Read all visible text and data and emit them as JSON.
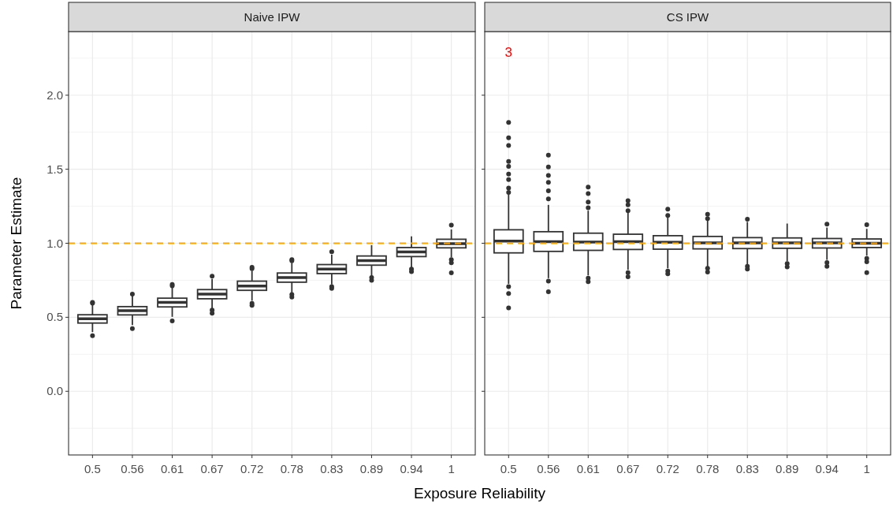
{
  "chart_data": [
    {
      "type": "box",
      "title": "Naive IPW",
      "xlabel": "Exposure Reliability",
      "ylabel": "Parameter Estimate",
      "categories": [
        "0.5",
        "0.56",
        "0.61",
        "0.67",
        "0.72",
        "0.78",
        "0.83",
        "0.89",
        "0.94",
        "1"
      ],
      "boxes": [
        {
          "low": 0.4,
          "q1": 0.461,
          "median": 0.49,
          "q3": 0.517,
          "high": 0.585,
          "outliers": [
            0.6,
            0.595,
            0.375
          ]
        },
        {
          "low": 0.448,
          "q1": 0.516,
          "median": 0.545,
          "q3": 0.572,
          "high": 0.649,
          "outliers": [
            0.656,
            0.424
          ]
        },
        {
          "low": 0.503,
          "q1": 0.57,
          "median": 0.6,
          "q3": 0.629,
          "high": 0.704,
          "outliers": [
            0.722,
            0.713,
            0.475
          ]
        },
        {
          "low": 0.558,
          "q1": 0.625,
          "median": 0.656,
          "q3": 0.687,
          "high": 0.759,
          "outliers": [
            0.777,
            0.548,
            0.527
          ]
        },
        {
          "low": 0.612,
          "q1": 0.682,
          "median": 0.711,
          "q3": 0.744,
          "high": 0.814,
          "outliers": [
            0.837,
            0.828,
            0.594,
            0.581
          ]
        },
        {
          "low": 0.667,
          "q1": 0.737,
          "median": 0.768,
          "q3": 0.799,
          "high": 0.868,
          "outliers": [
            0.89,
            0.881,
            0.654,
            0.636
          ]
        },
        {
          "low": 0.722,
          "q1": 0.795,
          "median": 0.826,
          "q3": 0.856,
          "high": 0.923,
          "outliers": [
            0.943,
            0.707,
            0.695
          ]
        },
        {
          "low": 0.777,
          "q1": 0.852,
          "median": 0.883,
          "q3": 0.914,
          "high": 0.987,
          "outliers": [
            0.768,
            0.75
          ]
        },
        {
          "low": 0.837,
          "q1": 0.91,
          "median": 0.942,
          "q3": 0.971,
          "high": 1.046,
          "outliers": [
            0.826,
            0.808
          ]
        },
        {
          "low": 0.905,
          "q1": 0.969,
          "median": 0.998,
          "q3": 1.027,
          "high": 1.093,
          "outliers": [
            1.122,
            0.89,
            0.868,
            0.8
          ]
        }
      ],
      "ylim": [
        -0.43,
        2.43
      ],
      "yticks": [
        {
          "value": 0,
          "label": "0.0"
        },
        {
          "value": 0.5,
          "label": "0.5"
        },
        {
          "value": 1,
          "label": "1.0"
        },
        {
          "value": 1.5,
          "label": "1.5"
        },
        {
          "value": 2,
          "label": "2.0"
        }
      ],
      "grid": true,
      "ref_lines": [
        {
          "axis": "y",
          "value": 1,
          "color": "#ffa500",
          "line_style": "dashed"
        }
      ]
    },
    {
      "type": "box",
      "title": "CS IPW",
      "categories": [
        "0.5",
        "0.56",
        "0.61",
        "0.67",
        "0.72",
        "0.78",
        "0.83",
        "0.89",
        "0.94",
        "1"
      ],
      "boxes": [
        {
          "low": 0.726,
          "q1": 0.935,
          "median": 1.015,
          "q3": 1.091,
          "high": 1.335,
          "outliers": [
            1.816,
            1.713,
            1.66,
            1.553,
            1.519,
            1.468,
            1.43,
            1.373,
            1.344,
            0.707,
            0.66,
            0.563
          ]
        },
        {
          "low": 0.764,
          "q1": 0.945,
          "median": 1.011,
          "q3": 1.078,
          "high": 1.259,
          "outliers": [
            1.595,
            1.515,
            1.458,
            1.411,
            1.354,
            1.3,
            0.745,
            0.673
          ]
        },
        {
          "low": 0.783,
          "q1": 0.952,
          "median": 1.008,
          "q3": 1.068,
          "high": 1.22,
          "outliers": [
            1.38,
            1.335,
            1.278,
            1.24,
            0.764,
            0.74
          ]
        },
        {
          "low": 0.821,
          "q1": 0.958,
          "median": 1.011,
          "q3": 1.061,
          "high": 1.211,
          "outliers": [
            1.287,
            1.259,
            1.22,
            0.802,
            0.774
          ]
        },
        {
          "low": 0.831,
          "q1": 0.96,
          "median": 1.006,
          "q3": 1.051,
          "high": 1.183,
          "outliers": [
            1.23,
            1.188,
            0.812,
            0.793
          ]
        },
        {
          "low": 0.84,
          "q1": 0.962,
          "median": 1.002,
          "q3": 1.046,
          "high": 1.163,
          "outliers": [
            1.196,
            1.167,
            0.831,
            0.806
          ]
        },
        {
          "low": 0.859,
          "q1": 0.964,
          "median": 1.002,
          "q3": 1.038,
          "high": 1.144,
          "outliers": [
            1.163,
            0.844,
            0.825
          ]
        },
        {
          "low": 0.878,
          "q1": 0.966,
          "median": 1.002,
          "q3": 1.036,
          "high": 1.133,
          "outliers": [
            0.863,
            0.84
          ]
        },
        {
          "low": 0.888,
          "q1": 0.968,
          "median": 1.002,
          "q3": 1.032,
          "high": 1.106,
          "outliers": [
            1.129,
            0.869,
            0.844
          ]
        },
        {
          "low": 0.916,
          "q1": 0.971,
          "median": 1.0,
          "q3": 1.029,
          "high": 1.097,
          "outliers": [
            1.125,
            0.897,
            0.875,
            0.802
          ]
        }
      ],
      "ylim": [
        -0.43,
        2.43
      ],
      "yticks": [
        {
          "value": 0,
          "label": null
        },
        {
          "value": 0.5,
          "label": null
        },
        {
          "value": 1,
          "label": null
        },
        {
          "value": 1.5,
          "label": null
        },
        {
          "value": 2,
          "label": null
        }
      ],
      "grid": true,
      "tick_labels": "x",
      "ref_lines": [
        {
          "axis": "y",
          "value": 1,
          "color": "#ffa500",
          "line_style": "dashed"
        }
      ],
      "annotations": [
        "3"
      ]
    }
  ]
}
